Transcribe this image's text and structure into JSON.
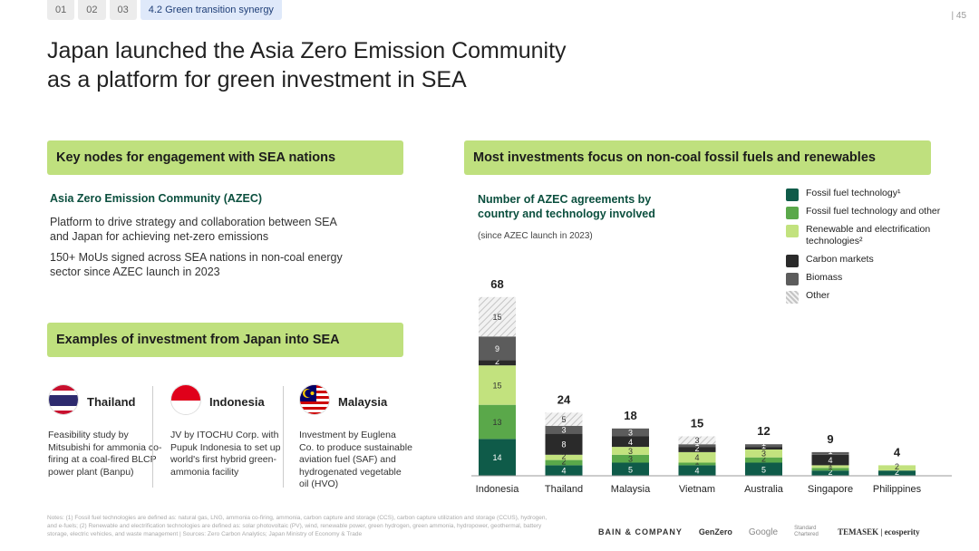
{
  "nav": {
    "tabs": [
      "01",
      "02",
      "03"
    ],
    "active_tab": "4.2 Green transition synergy",
    "page_number": "| 45"
  },
  "title": "Japan launched the Asia Zero Emission Community\nas a platform for green investment in SEA",
  "left": {
    "band1": "Key nodes for engagement with SEA nations",
    "azec_title": "Asia Zero Emission Community (AZEC)",
    "azec_p1": "Platform to drive strategy and collaboration between SEA and Japan for achieving net-zero emissions",
    "azec_p2": "150+ MoUs signed across SEA nations in non-coal energy sector since AZEC launch in 2023",
    "band2": "Examples of investment from Japan into SEA",
    "countries": [
      {
        "name": "Thailand",
        "desc": "Feasibility study by Mitsubishi for ammonia co-firing at a coal-fired BLCP power plant (Banpu)"
      },
      {
        "name": "Indonesia",
        "desc": "JV by ITOCHU Corp. with Pupuk Indonesia to set up world's first hybrid green-ammonia facility"
      },
      {
        "name": "Malaysia",
        "desc": "Investment by Euglena Co. to produce sustainable aviation fuel (SAF) and hydrogenated vegetable oil (HVO)"
      }
    ]
  },
  "right": {
    "band": "Most investments focus on non-coal fossil fuels and renewables",
    "chart_title": "Number of AZEC agreements by country and technology involved",
    "chart_sub": "(since AZEC launch in 2023)"
  },
  "colors": {
    "fossil": "#0f5b49",
    "fossil_other": "#5aa84a",
    "renewable": "#c2e27e",
    "carbon": "#2a2a2a",
    "biomass": "#5c5c5c",
    "other": "#d9d9d9"
  },
  "chart_data": {
    "type": "bar",
    "stacked": true,
    "categories": [
      "Indonesia",
      "Thailand",
      "Malaysia",
      "Vietnam",
      "Australia",
      "Singapore",
      "Philippines"
    ],
    "totals": [
      68,
      24,
      18,
      15,
      12,
      9,
      4
    ],
    "series": [
      {
        "name": "Fossil fuel technology¹",
        "key": "fossil",
        "values": [
          14,
          4,
          5,
          4,
          5,
          2,
          2
        ]
      },
      {
        "name": "Fossil fuel technology and other",
        "key": "fossil_other",
        "values": [
          13,
          2,
          3,
          1,
          2,
          1,
          0
        ]
      },
      {
        "name": "Renewable and electrification technologies²",
        "key": "renewable",
        "values": [
          15,
          2,
          3,
          4,
          3,
          1,
          2
        ]
      },
      {
        "name": "Carbon markets",
        "key": "carbon",
        "values": [
          2,
          8,
          4,
          2,
          1,
          4,
          0
        ]
      },
      {
        "name": "Biomass",
        "key": "biomass",
        "values": [
          9,
          3,
          3,
          1,
          1,
          1,
          0
        ]
      },
      {
        "name": "Other",
        "key": "other",
        "values": [
          15,
          5,
          0,
          3,
          0,
          0,
          0
        ]
      }
    ]
  },
  "legend": [
    {
      "label": "Fossil fuel technology¹",
      "key": "fossil"
    },
    {
      "label": "Fossil fuel technology and other",
      "key": "fossil_other"
    },
    {
      "label": "Renewable and electrification technologies²",
      "key": "renewable"
    },
    {
      "label": "Carbon markets",
      "key": "carbon"
    },
    {
      "label": "Biomass",
      "key": "biomass"
    },
    {
      "label": "Other",
      "key": "other"
    }
  ],
  "notes": "Notes: (1) Fossil fuel technologies are defined as: natural gas, LNG, ammonia co-firing, ammonia, carbon capture and storage (CCS), carbon capture utilization and storage (CCUS), hydrogen, and e-fuels; (2) Renewable and electrification technologies are defined as: solar photovoltaic (PV), wind, renewable power, green hydrogen, green ammonia, hydropower, geothermal, battery storage, electric vehicles, and waste management | Sources: Zero Carbon Analytics; Japan Ministry of Economy & Trade",
  "logos": [
    "BAIN & COMPANY",
    "GenZero",
    "Google",
    "Standard Chartered",
    "TEMASEK | ecosperity"
  ]
}
